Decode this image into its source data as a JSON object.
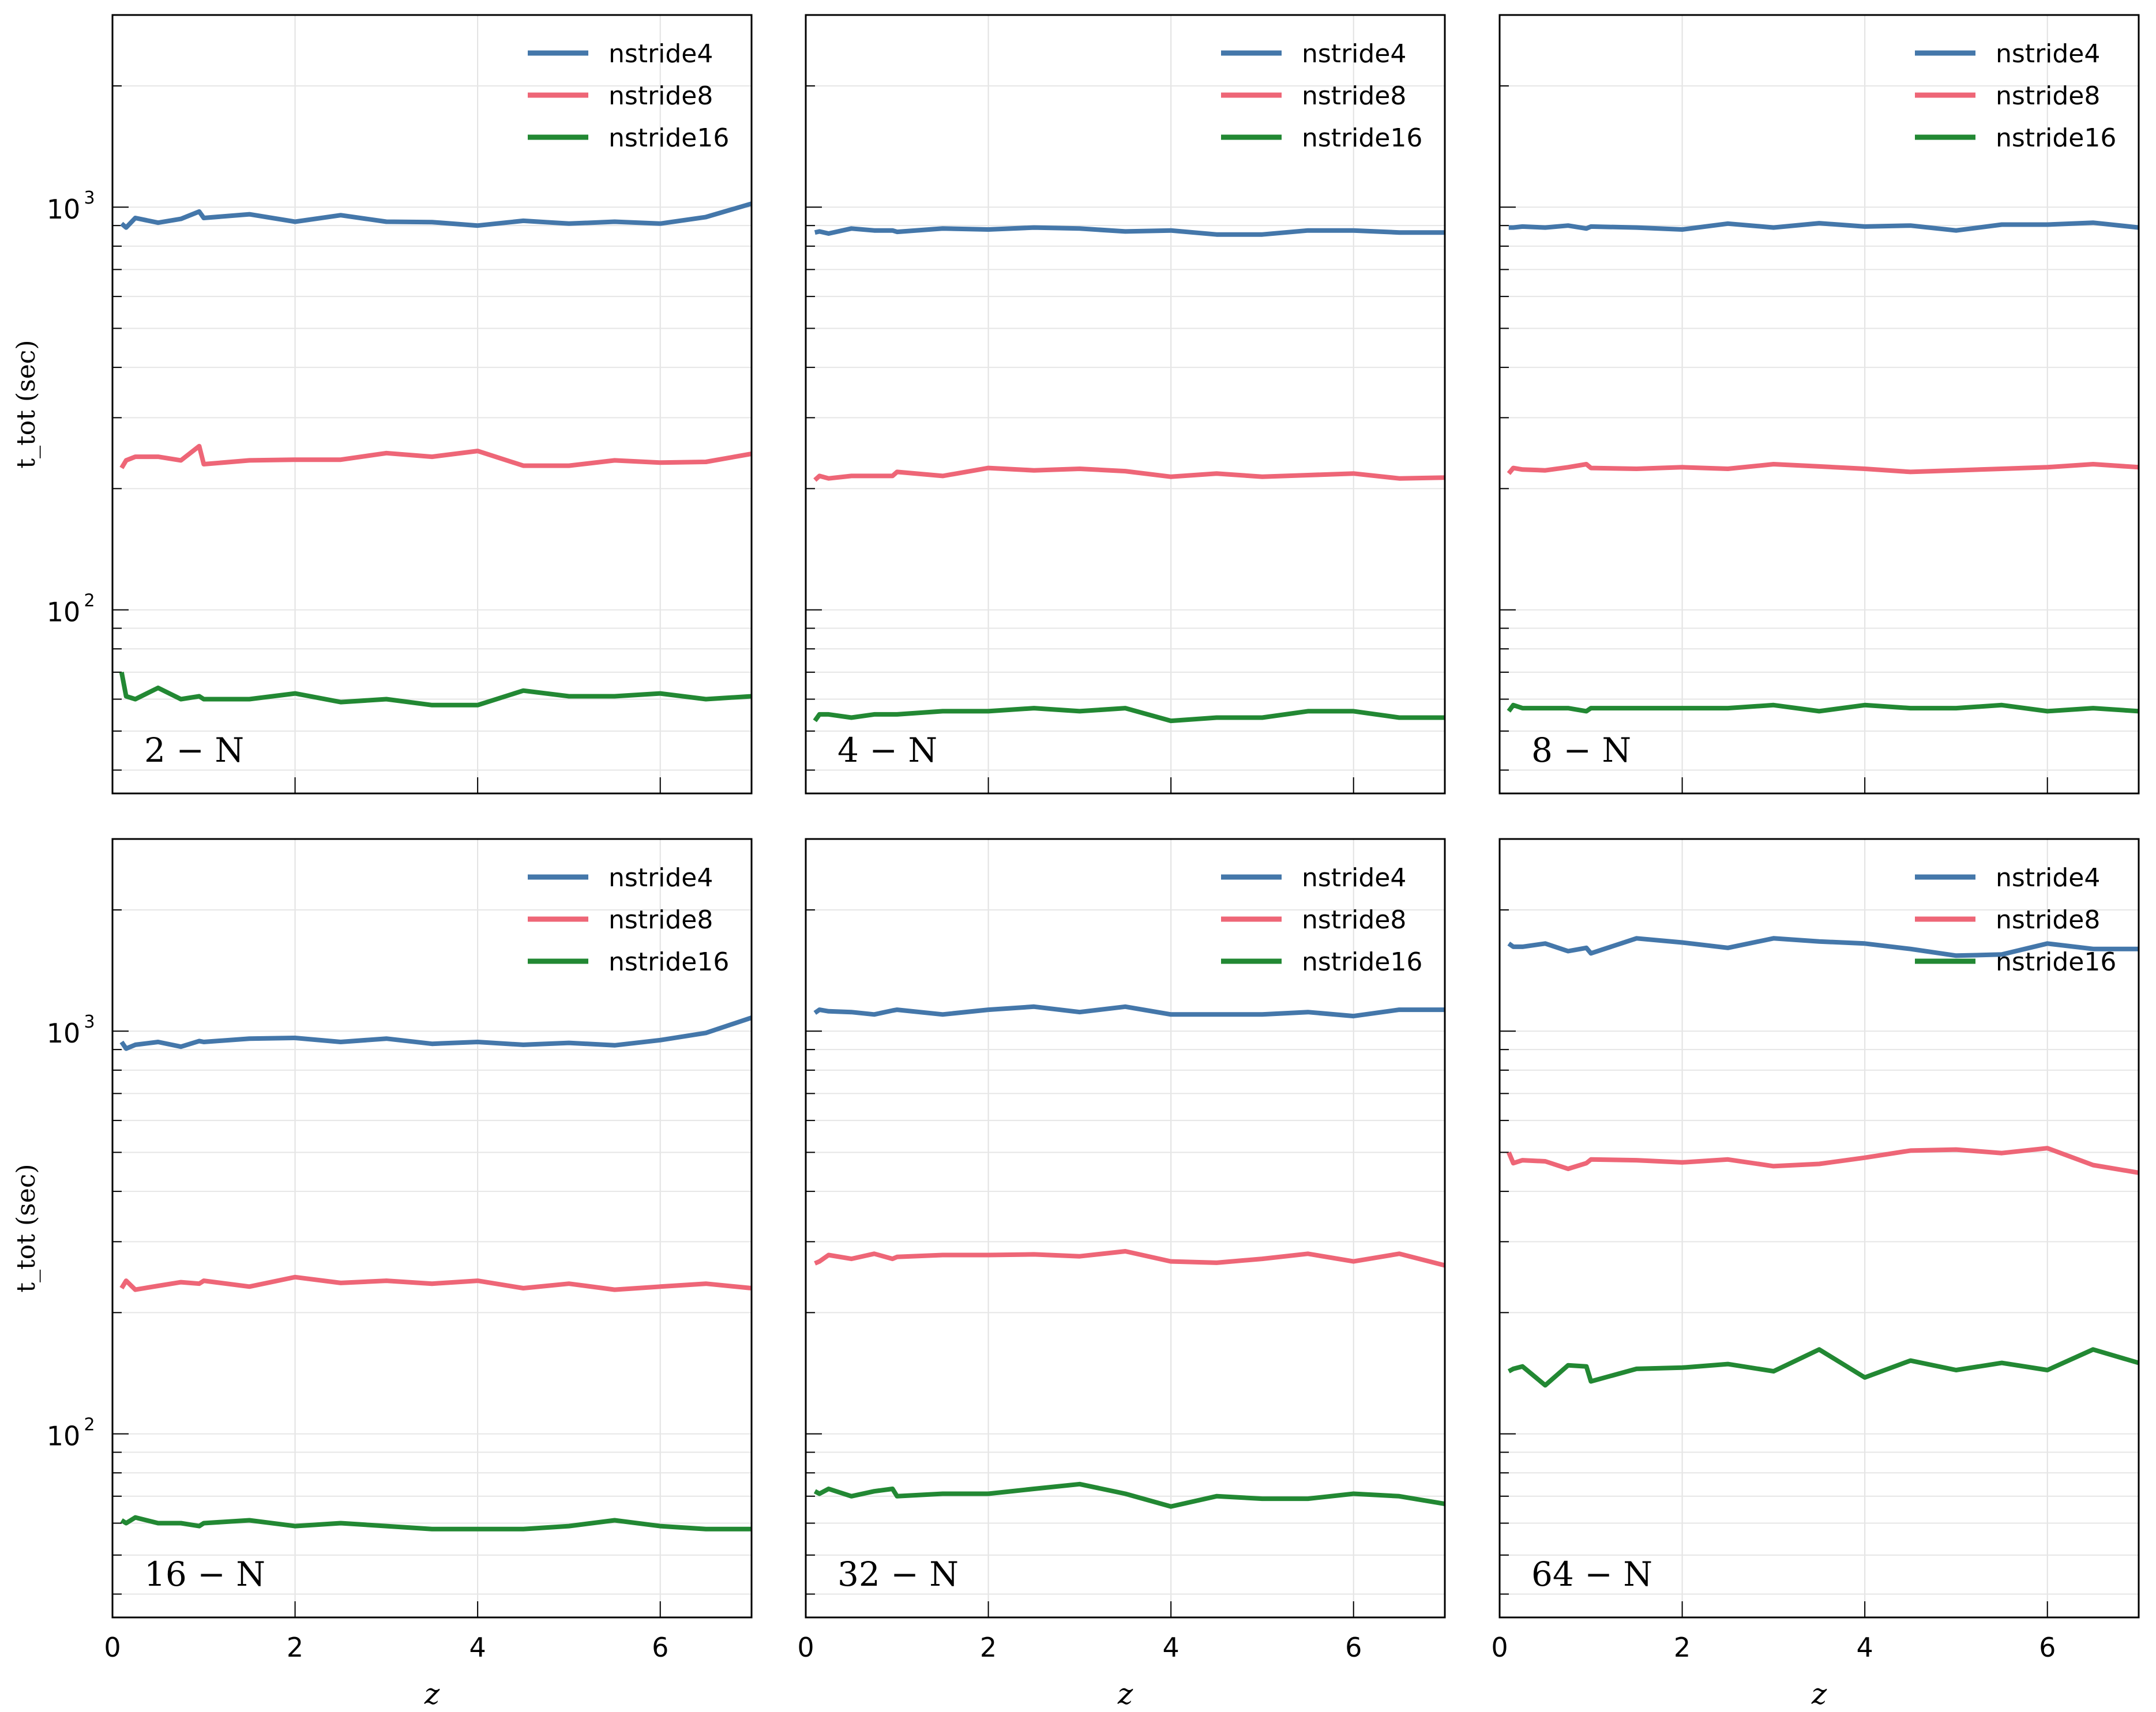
{
  "chart_data": {
    "type": "line",
    "x_label": "z",
    "y_label": "t_tot (sec)",
    "y_scale": "log",
    "ylim": [
      35,
      3000
    ],
    "xlim": [
      0,
      7
    ],
    "x_ticks": [
      "0",
      "2",
      "4",
      "6"
    ],
    "y_ticks": [
      {
        "value": 100,
        "label": "10",
        "exp": "2"
      },
      {
        "value": 1000,
        "label": "10",
        "exp": "3"
      }
    ],
    "grid": true,
    "legend_position": "top-right",
    "series_styles": [
      {
        "name": "nstride4",
        "color": "#4477aa"
      },
      {
        "name": "nstride8",
        "color": "#ee6677"
      },
      {
        "name": "nstride16",
        "color": "#228833"
      }
    ],
    "z": [
      0.1,
      0.15,
      0.25,
      0.5,
      0.75,
      0.95,
      1.0,
      1.5,
      2.0,
      2.5,
      3.0,
      3.5,
      4.0,
      4.5,
      5.0,
      5.5,
      6.0,
      6.5,
      7.0
    ],
    "panels": [
      {
        "label": "2 − N",
        "series": [
          {
            "name": "nstride4",
            "values": [
              910,
              890,
              940,
              915,
              935,
              975,
              940,
              960,
              920,
              955,
              920,
              918,
              900,
              925,
              910,
              920,
              910,
              945,
              1020
            ]
          },
          {
            "name": "nstride8",
            "values": [
              225,
              235,
              240,
              240,
              235,
              255,
              230,
              235,
              236,
              236,
              245,
              240,
              248,
              228,
              228,
              235,
              232,
              233,
              244
            ]
          },
          {
            "name": "nstride16",
            "values": [
              70,
              61,
              60,
              64,
              60,
              61,
              60,
              60,
              62,
              59,
              60,
              58,
              58,
              63,
              61,
              61,
              62,
              60,
              61
            ]
          }
        ]
      },
      {
        "label": "4 − N",
        "series": [
          {
            "name": "nstride4",
            "values": [
              865,
              870,
              860,
              885,
              875,
              875,
              868,
              885,
              880,
              890,
              885,
              870,
              875,
              855,
              855,
              875,
              875,
              865,
              865
            ]
          },
          {
            "name": "nstride8",
            "values": [
              210,
              215,
              212,
              215,
              215,
              215,
              220,
              215,
              225,
              222,
              224,
              221,
              214,
              218,
              214,
              216,
              218,
              212,
              213
            ]
          },
          {
            "name": "nstride16",
            "values": [
              53,
              55,
              55,
              54,
              55,
              55,
              55,
              56,
              56,
              57,
              56,
              57,
              53,
              54,
              54,
              56,
              56,
              54,
              54
            ]
          }
        ]
      },
      {
        "label": "8 − N",
        "series": [
          {
            "name": "nstride4",
            "values": [
              890,
              890,
              895,
              890,
              900,
              885,
              895,
              890,
              880,
              910,
              890,
              912,
              895,
              900,
              875,
              905,
              905,
              915,
              890
            ]
          },
          {
            "name": "nstride8",
            "values": [
              218,
              225,
              223,
              222,
              226,
              230,
              225,
              224,
              226,
              224,
              230,
              227,
              224,
              220,
              222,
              224,
              226,
              230,
              226
            ]
          },
          {
            "name": "nstride16",
            "values": [
              56,
              58,
              57,
              57,
              57,
              56,
              57,
              57,
              57,
              57,
              58,
              56,
              58,
              57,
              57,
              58,
              56,
              57,
              56
            ]
          }
        ]
      },
      {
        "label": "16 − N",
        "series": [
          {
            "name": "nstride4",
            "values": [
              940,
              905,
              925,
              940,
              915,
              945,
              940,
              958,
              962,
              940,
              958,
              930,
              940,
              925,
              935,
              922,
              950,
              990,
              1080
            ]
          },
          {
            "name": "nstride8",
            "values": [
              230,
              240,
              228,
              233,
              238,
              236,
              240,
              232,
              245,
              237,
              240,
              236,
              240,
              230,
              236,
              228,
              232,
              236,
              230
            ]
          },
          {
            "name": "nstride16",
            "values": [
              61,
              60,
              62,
              60,
              60,
              59,
              60,
              61,
              59,
              60,
              59,
              58,
              58,
              58,
              59,
              61,
              59,
              58,
              58
            ]
          }
        ]
      },
      {
        "label": "32 − N",
        "series": [
          {
            "name": "nstride4",
            "values": [
              1110,
              1130,
              1120,
              1115,
              1100,
              1125,
              1130,
              1100,
              1130,
              1150,
              1115,
              1150,
              1100,
              1100,
              1100,
              1115,
              1090,
              1130,
              1130
            ]
          },
          {
            "name": "nstride8",
            "values": [
              265,
              268,
              278,
              272,
              280,
              272,
              275,
              278,
              278,
              279,
              276,
              284,
              268,
              266,
              272,
              280,
              268,
              280,
              262
            ]
          },
          {
            "name": "nstride16",
            "values": [
              72,
              71,
              73,
              70,
              72,
              73,
              70,
              71,
              71,
              73,
              75,
              71,
              66,
              70,
              69,
              69,
              71,
              70,
              67
            ]
          }
        ]
      },
      {
        "label": "64 − N",
        "series": [
          {
            "name": "nstride4",
            "values": [
              1650,
              1620,
              1620,
              1650,
              1580,
              1610,
              1560,
              1700,
              1660,
              1610,
              1700,
              1670,
              1650,
              1600,
              1540,
              1550,
              1650,
              1600,
              1600
            ]
          },
          {
            "name": "nstride8",
            "values": [
              500,
              470,
              478,
              475,
              455,
              470,
              480,
              478,
              472,
              480,
              462,
              468,
              485,
              505,
              508,
              498,
              512,
              465,
              445
            ]
          },
          {
            "name": "nstride16",
            "values": [
              143,
              145,
              147,
              132,
              148,
              147,
              135,
              145,
              146,
              149,
              143,
              162,
              138,
              152,
              144,
              150,
              144,
              162,
              150
            ]
          }
        ]
      }
    ]
  }
}
